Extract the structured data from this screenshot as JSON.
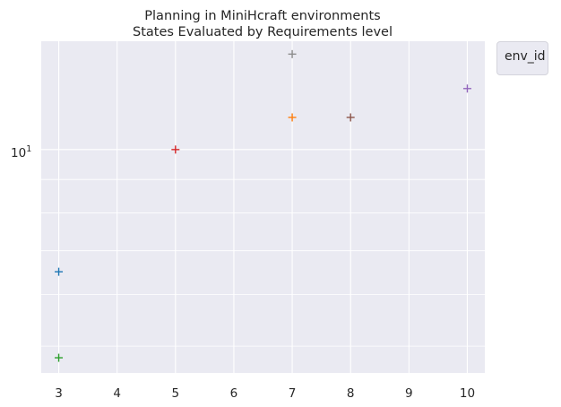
{
  "chart_data": {
    "type": "scatter",
    "title": "Planning in MiniHcraft environments",
    "subtitle": "States Evaluated by Requirements level",
    "xlabel": "",
    "ylabel": "",
    "x_ticks": [
      "3",
      "4",
      "5",
      "6",
      "7",
      "8",
      "9",
      "10"
    ],
    "y_scale": "log",
    "y_tick_label": "10^1",
    "xlim": [
      2.7,
      10.3
    ],
    "ylim": [
      4.55,
      14.65
    ],
    "grid": true,
    "legend": {
      "title": "env_id",
      "placement": "outside-top-right"
    },
    "marker": "+",
    "points": [
      {
        "x": 3,
        "y": 6.5,
        "color": "#1f77b4"
      },
      {
        "x": 3,
        "y": 4.8,
        "color": "#2ca02c"
      },
      {
        "x": 5,
        "y": 10.0,
        "color": "#d62728"
      },
      {
        "x": 7,
        "y": 14.0,
        "color": "#8c8c8c"
      },
      {
        "x": 7,
        "y": 11.2,
        "color": "#ff7f0e"
      },
      {
        "x": 8,
        "y": 11.2,
        "color": "#8c564b"
      },
      {
        "x": 10,
        "y": 12.4,
        "color": "#9467bd"
      }
    ]
  }
}
